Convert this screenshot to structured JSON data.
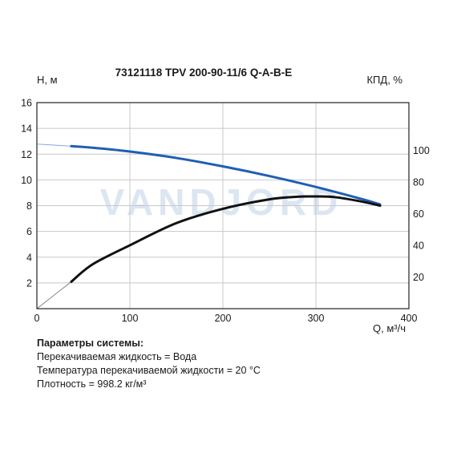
{
  "chart_data": {
    "type": "line",
    "title": "73121118 TPV 200-90-11/6 Q-A-B-E",
    "xlabel": "Q, м³/ч",
    "ylabel_left": "H, м",
    "ylabel_right": "КПД, %",
    "watermark": "VANDJORD",
    "xlim": [
      0,
      400
    ],
    "ylim_left": [
      0,
      16
    ],
    "ylim_right": [
      0,
      130
    ],
    "x_ticks": [
      "0",
      "100",
      "200",
      "300",
      "400"
    ],
    "y_left_ticks": [
      "2",
      "4",
      "6",
      "8",
      "10",
      "12",
      "14",
      "16"
    ],
    "y_right_ticks": [
      "20",
      "40",
      "60",
      "80",
      "100"
    ],
    "grid": true,
    "series": [
      {
        "axis": "left",
        "color": "#1f5fb4",
        "x": [
          37,
          60,
          100,
          150,
          200,
          250,
          300,
          350,
          369
        ],
        "y": [
          12.62,
          12.5,
          12.2,
          11.7,
          11.05,
          10.3,
          9.45,
          8.5,
          8.1
        ]
      },
      {
        "axis": "right",
        "color": "#111111",
        "x": [
          37,
          60,
          100,
          150,
          200,
          250,
          280,
          300,
          320,
          350,
          369
        ],
        "y": [
          17,
          28,
          40,
          54,
          63,
          69,
          70.6,
          70.8,
          70.4,
          67.5,
          65
        ]
      }
    ],
    "extrapolation": [
      {
        "axis": "left",
        "color": "#7fa3d6",
        "x": [
          0,
          37
        ],
        "y": [
          12.78,
          12.62
        ]
      },
      {
        "axis": "right",
        "color": "#777777",
        "x": [
          0,
          37
        ],
        "y": [
          0,
          17
        ]
      }
    ]
  },
  "params": {
    "title": "Параметры системы:",
    "lines": [
      "Перекачиваемая жидкость = Вода",
      "Температура перекачиваемой жидкости = 20 °C",
      "Плотность = 998.2 кг/м³"
    ]
  }
}
